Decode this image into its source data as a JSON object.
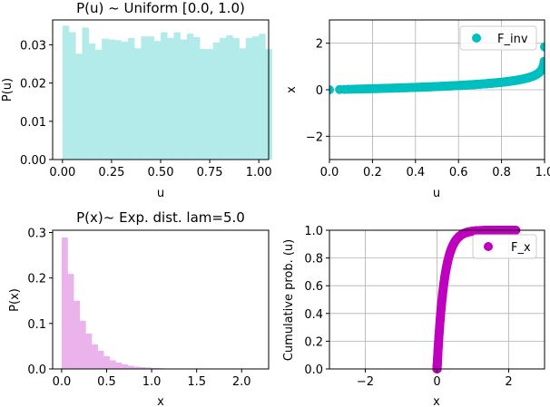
{
  "colors": {
    "uniform_hist": "#b3ebeb",
    "finv_points": "#00bfbf",
    "exp_hist": "#ebb3eb",
    "fx_points": "#bf00bf",
    "grid": "#b0b0b0"
  },
  "chart_data": [
    {
      "type": "bar",
      "title": "P(u) ~ Uniform [0.0, 1.0)",
      "xlabel": "u",
      "ylabel": "P(u)",
      "xlim": [
        -0.05,
        1.05
      ],
      "ylim": [
        0,
        0.0365
      ],
      "xticks": [
        0,
        0.25,
        0.5,
        0.75,
        1.0
      ],
      "xtick_labels": [
        "0.00",
        "0.25",
        "0.50",
        "0.75",
        "1.00"
      ],
      "yticks": [
        0,
        0.01,
        0.02,
        0.03
      ],
      "ytick_labels": [
        "0.00",
        "0.01",
        "0.02",
        "0.03"
      ],
      "bin_edges_start": 0,
      "bin_width": 0.03333,
      "values": [
        0.035,
        0.0333,
        0.0277,
        0.0345,
        0.0304,
        0.0287,
        0.0316,
        0.0314,
        0.0312,
        0.0308,
        0.0318,
        0.0291,
        0.0322,
        0.0322,
        0.031,
        0.0333,
        0.0318,
        0.0333,
        0.0314,
        0.0329,
        0.032,
        0.0289,
        0.0289,
        0.0306,
        0.0318,
        0.0325,
        0.0318,
        0.0291,
        0.0318,
        0.0322,
        0.0329,
        0.0289
      ],
      "grid": false
    },
    {
      "type": "scatter",
      "xlabel": "u",
      "ylabel": "x",
      "xlim": [
        0,
        1.0
      ],
      "ylim": [
        -3,
        3
      ],
      "xticks": [
        0,
        0.2,
        0.4,
        0.6,
        0.8,
        1.0
      ],
      "xtick_labels": [
        "0.0",
        "0.2",
        "0.4",
        "0.6",
        "0.8",
        "1.0"
      ],
      "yticks": [
        -2,
        0,
        2
      ],
      "ytick_labels": [
        "−2",
        "0",
        "2"
      ],
      "series": [
        {
          "name": "F_inv",
          "function": "-ln(1-u)/5",
          "u_range": [
            0,
            0.9999
          ]
        }
      ],
      "legend": "top-right",
      "grid": true
    },
    {
      "type": "bar",
      "title": "P(x)~ Exp. dist. lam=5.0",
      "xlabel": "x",
      "ylabel": "P(x)",
      "xlim": [
        -0.1,
        2.3
      ],
      "ylim": [
        0,
        0.305
      ],
      "xticks": [
        0,
        0.5,
        1.0,
        1.5,
        2.0
      ],
      "xtick_labels": [
        "0.0",
        "0.5",
        "1.0",
        "1.5",
        "2.0"
      ],
      "yticks": [
        0,
        0.1,
        0.2,
        0.3
      ],
      "ytick_labels": [
        "0.0",
        "0.1",
        "0.2",
        "0.3"
      ],
      "bin_edges_start": 0,
      "bin_width": 0.0667,
      "values": [
        0.289,
        0.209,
        0.15,
        0.106,
        0.078,
        0.054,
        0.04,
        0.028,
        0.019,
        0.014,
        0.01,
        0.007,
        0.005,
        0.004,
        0.003,
        0.002,
        0.0015,
        0.001,
        0.0008,
        0.0006,
        0.0005,
        0.0004,
        0.0003,
        0.0003,
        0.0002,
        0.0002,
        0.0001,
        0.0001,
        0.0001,
        0.0001,
        0.0001,
        0.0001
      ],
      "grid": false
    },
    {
      "type": "scatter",
      "xlabel": "x",
      "ylabel": "Cumulative prob. (u)",
      "xlim": [
        -3,
        3
      ],
      "ylim": [
        0,
        1.0
      ],
      "xticks": [
        -2,
        0,
        2
      ],
      "xtick_labels": [
        "−2",
        "0",
        "2"
      ],
      "yticks": [
        0,
        0.2,
        0.4,
        0.6,
        0.8,
        1.0
      ],
      "ytick_labels": [
        "0.0",
        "0.2",
        "0.4",
        "0.6",
        "0.8",
        "1.0"
      ],
      "series": [
        {
          "name": "F_x",
          "function": "1-exp(-5x)",
          "x_range": [
            0,
            2.2
          ]
        }
      ],
      "legend": "top-right",
      "grid": true
    }
  ]
}
